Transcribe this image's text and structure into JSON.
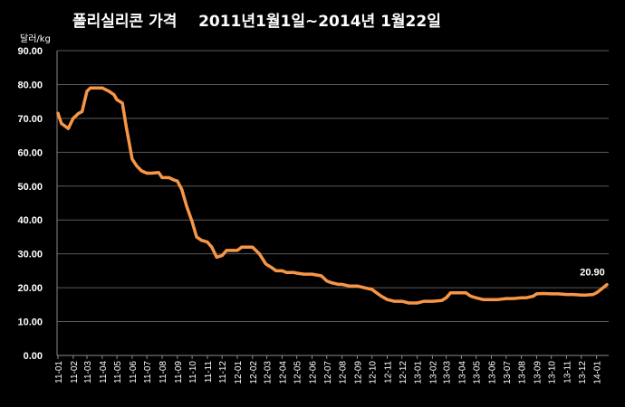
{
  "chart_data": {
    "type": "line",
    "title": "폴리실리콘 가격    2011년1월1일~2014년 1월22일",
    "ylabel": "달러/kg",
    "xlabel": "",
    "ylim": [
      0,
      90
    ],
    "yticks": [
      "0.00",
      "10.00",
      "20.00",
      "30.00",
      "40.00",
      "50.00",
      "60.00",
      "70.00",
      "80.00",
      "90.00"
    ],
    "xtick_labels": [
      "11-01",
      "11-02",
      "11-03",
      "11-04",
      "11-05",
      "11-06",
      "11-07",
      "11-08",
      "11-09",
      "11-10",
      "11-11",
      "11-12",
      "12-01",
      "12-02",
      "12-03",
      "12-04",
      "12-05",
      "12-06",
      "12-07",
      "12-08",
      "12-09",
      "12-10",
      "12-11",
      "12-12",
      "13-01",
      "13-02",
      "13-03",
      "13-04",
      "13-05",
      "13-06",
      "13-07",
      "13-08",
      "13-09",
      "13-10",
      "13-11",
      "13-12",
      "14-01"
    ],
    "grid": true,
    "line_color": "#F79646",
    "annotation": "20.90",
    "series": [
      {
        "x": [
          "2011-01-01",
          "2011-01-08",
          "2011-01-22",
          "2011-02-01",
          "2011-02-12",
          "2011-02-19",
          "2011-03-01",
          "2011-03-08",
          "2011-03-19",
          "2011-04-01",
          "2011-04-15",
          "2011-04-25",
          "2011-05-01",
          "2011-05-12",
          "2011-05-20",
          "2011-06-01",
          "2011-06-10",
          "2011-06-20",
          "2011-07-01",
          "2011-07-10",
          "2011-07-25",
          "2011-08-01",
          "2011-08-15",
          "2011-08-25",
          "2011-09-01",
          "2011-09-10",
          "2011-09-20",
          "2011-10-01",
          "2011-10-10",
          "2011-10-20",
          "2011-11-01",
          "2011-11-10",
          "2011-11-20",
          "2011-12-01",
          "2011-12-10",
          "2011-12-20",
          "2012-01-01",
          "2012-01-10",
          "2012-01-25",
          "2012-02-01",
          "2012-02-15",
          "2012-02-28",
          "2012-03-10",
          "2012-03-20",
          "2012-04-01",
          "2012-04-10",
          "2012-04-25",
          "2012-05-01",
          "2012-05-15",
          "2012-06-01",
          "2012-06-20",
          "2012-07-01",
          "2012-07-10",
          "2012-07-25",
          "2012-08-01",
          "2012-08-15",
          "2012-09-01",
          "2012-09-15",
          "2012-10-01",
          "2012-10-10",
          "2012-10-20",
          "2012-11-01",
          "2012-11-15",
          "2012-12-01",
          "2012-12-15",
          "2013-01-01",
          "2013-01-15",
          "2013-02-01",
          "2013-02-20",
          "2013-03-01",
          "2013-03-10",
          "2013-03-20",
          "2013-04-01",
          "2013-04-10",
          "2013-04-20",
          "2013-05-01",
          "2013-05-15",
          "2013-06-01",
          "2013-06-15",
          "2013-07-01",
          "2013-07-15",
          "2013-08-01",
          "2013-08-10",
          "2013-08-25",
          "2013-09-01",
          "2013-09-15",
          "2013-10-01",
          "2013-10-15",
          "2013-11-01",
          "2013-11-15",
          "2013-12-01",
          "2013-12-10",
          "2013-12-25",
          "2014-01-01",
          "2014-01-10",
          "2014-01-22"
        ],
        "y": [
          71.5,
          68.5,
          67.0,
          70.0,
          71.5,
          72.0,
          78.0,
          79.0,
          79.0,
          79.0,
          78.0,
          77.0,
          75.5,
          74.5,
          67.5,
          58.0,
          56.0,
          54.5,
          53.8,
          53.8,
          54.0,
          52.5,
          52.5,
          51.8,
          51.5,
          49.0,
          44.0,
          39.5,
          35.0,
          34.0,
          33.5,
          32.0,
          29.0,
          29.5,
          31.0,
          31.0,
          31.0,
          32.0,
          32.0,
          32.0,
          30.0,
          27.0,
          26.0,
          25.0,
          25.0,
          24.5,
          24.5,
          24.3,
          24.0,
          24.0,
          23.5,
          22.0,
          21.5,
          21.0,
          21.0,
          20.5,
          20.5,
          20.0,
          19.5,
          18.5,
          17.5,
          16.5,
          16.0,
          16.0,
          15.5,
          15.5,
          16.0,
          16.0,
          16.2,
          17.0,
          18.5,
          18.5,
          18.5,
          18.5,
          17.5,
          17.0,
          16.5,
          16.5,
          16.5,
          16.8,
          16.8,
          17.0,
          17.0,
          17.5,
          18.2,
          18.3,
          18.2,
          18.2,
          18.0,
          18.0,
          17.8,
          17.8,
          18.0,
          18.5,
          19.5,
          20.9
        ]
      }
    ]
  }
}
